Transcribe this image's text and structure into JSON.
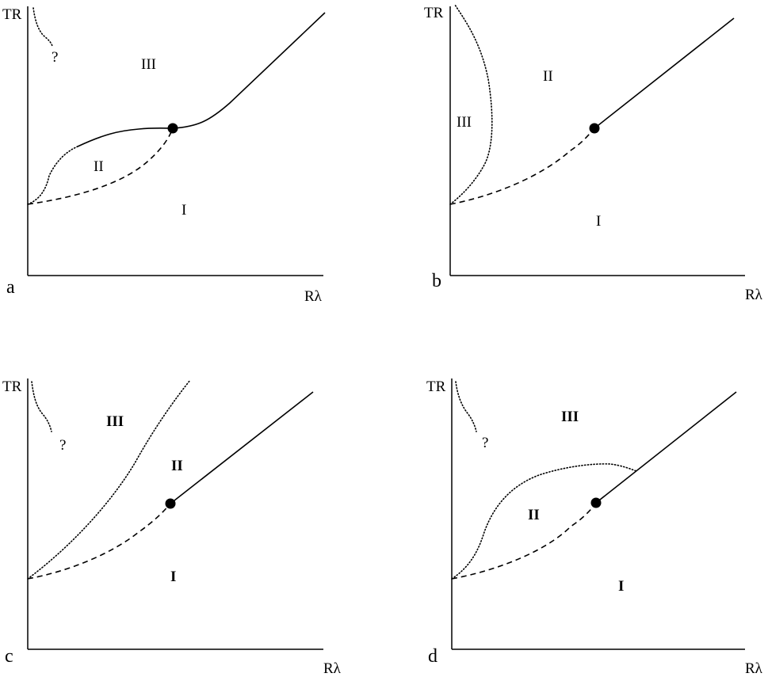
{
  "panels": {
    "a": {
      "letter": "a",
      "y_axis_label": "TR",
      "x_axis_label": "Rλ",
      "region_I": "I",
      "region_II": "II",
      "region_III": "III",
      "unknown_mark": "?"
    },
    "b": {
      "letter": "b",
      "y_axis_label": "TR",
      "x_axis_label": "Rλ",
      "region_I": "I",
      "region_II": "II",
      "region_III": "III"
    },
    "c": {
      "letter": "c",
      "y_axis_label": "TR",
      "x_axis_label": "Rλ",
      "region_I": "I",
      "region_II": "II",
      "region_III": "III",
      "unknown_mark": "?"
    },
    "d": {
      "letter": "d",
      "y_axis_label": "TR",
      "x_axis_label": "Rλ",
      "region_I": "I",
      "region_II": "II",
      "region_III": "III",
      "unknown_mark": "?"
    }
  }
}
